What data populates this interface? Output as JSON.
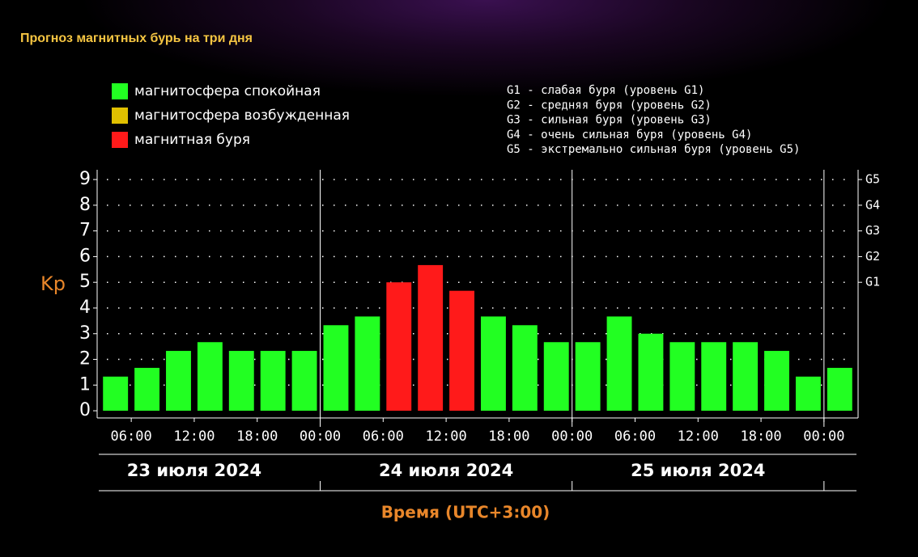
{
  "chart_data": {
    "type": "bar",
    "title": "Прогноз магнитных бурь на три дня",
    "legend": [
      {
        "name": "магнитосфера спокойная",
        "color": "#22ff22"
      },
      {
        "name": "магнитосфера возбужденная",
        "color": "#e0c000"
      },
      {
        "name": "магнитная буря",
        "color": "#ff1a1a"
      }
    ],
    "storm_levels": [
      "G1 - слабая буря (уровень G1)",
      "G2 - средняя буря (уровень G2)",
      "G3 - сильная буря (уровень G3)",
      "G4 - очень сильная буря (уровень G4)",
      "G5 - экстремально сильная буря (уровень G5)"
    ],
    "y_label": "Kp",
    "x_label": "Время (UTC+3:00)",
    "days": [
      "23 июля 2024",
      "24 июля 2024",
      "25 июля 2024"
    ],
    "day_boundaries": [
      24,
      48,
      72
    ],
    "bar_width": 3,
    "x": [
      3,
      6,
      9,
      12,
      15,
      18,
      21,
      24,
      27,
      30,
      33,
      36,
      39,
      42,
      45,
      48,
      51,
      54,
      57,
      60,
      63,
      66,
      69,
      72
    ],
    "values": [
      1.33,
      1.67,
      2.33,
      2.67,
      2.33,
      2.33,
      2.33,
      3.33,
      3.67,
      5,
      5.67,
      4.67,
      3.67,
      3.33,
      2.67,
      2.67,
      3.67,
      3,
      2.67,
      2.67,
      2.67,
      2.33,
      1.33,
      1.67
    ],
    "colors": [
      "#22ff22",
      "#22ff22",
      "#22ff22",
      "#22ff22",
      "#22ff22",
      "#22ff22",
      "#22ff22",
      "#22ff22",
      "#22ff22",
      "#ff1a1a",
      "#ff1a1a",
      "#ff1a1a",
      "#22ff22",
      "#22ff22",
      "#22ff22",
      "#22ff22",
      "#22ff22",
      "#22ff22",
      "#22ff22",
      "#22ff22",
      "#22ff22",
      "#22ff22",
      "#22ff22",
      "#22ff22"
    ],
    "xlim": [
      2.75,
      75.25
    ],
    "xticks": [
      {
        "value": 6,
        "label": "06:00"
      },
      {
        "value": 12,
        "label": "12:00"
      },
      {
        "value": 18,
        "label": "18:00"
      },
      {
        "value": 24,
        "label": "00:00"
      },
      {
        "value": 30,
        "label": "06:00"
      },
      {
        "value": 36,
        "label": "12:00"
      },
      {
        "value": 42,
        "label": "18:00"
      },
      {
        "value": 48,
        "label": "00:00"
      },
      {
        "value": 54,
        "label": "06:00"
      },
      {
        "value": 60,
        "label": "12:00"
      },
      {
        "value": 66,
        "label": "18:00"
      },
      {
        "value": 72,
        "label": "00:00"
      }
    ],
    "ylim": [
      -0.28,
      9.38
    ],
    "yticks": [
      0,
      1,
      2,
      3,
      4,
      5,
      6,
      7,
      8,
      9
    ],
    "y2lim": [
      -0.28,
      9.38
    ],
    "y2ticks": [
      {
        "value": 5,
        "label": "G1"
      },
      {
        "value": 6,
        "label": "G2"
      },
      {
        "value": 7,
        "label": "G3"
      },
      {
        "value": 8,
        "label": "G4"
      },
      {
        "value": 9,
        "label": "G5"
      }
    ],
    "grid": true
  }
}
